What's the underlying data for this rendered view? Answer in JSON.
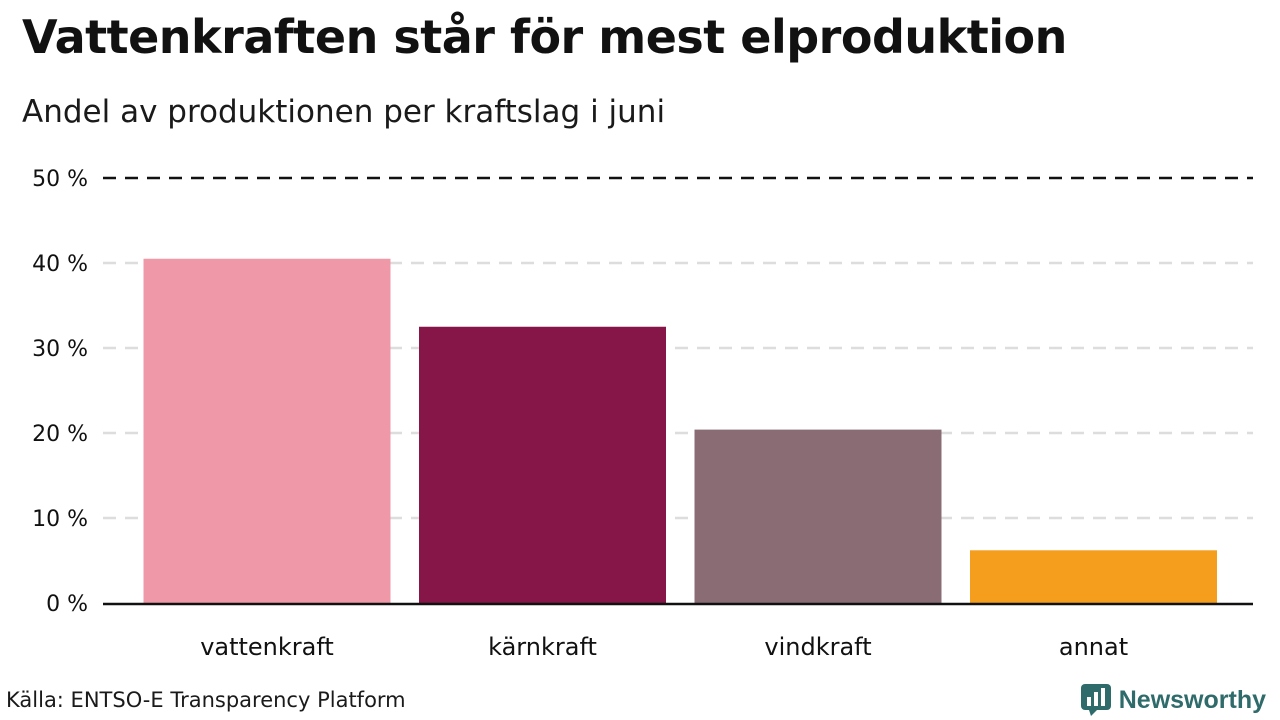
{
  "header": {
    "title": "Vattenkraften står för mest elproduktion",
    "subtitle": "Andel av produktionen per kraftslag i juni"
  },
  "footer": {
    "source": "Källa: ENTSO-E Transparency Platform",
    "brand_name": "Newsworthy",
    "brand_icon": "chart-logo-icon",
    "brand_color": "#2f6b6a"
  },
  "chart_data": {
    "type": "bar",
    "title": "Vattenkraften står för mest elproduktion",
    "subtitle": "Andel av produktionen per kraftslag i juni",
    "xlabel": "",
    "ylabel": "",
    "categories": [
      "vattenkraft",
      "kärnkraft",
      "vindkraft",
      "annat"
    ],
    "values": [
      40.5,
      32.5,
      20.4,
      6.2
    ],
    "colors": [
      "#ef98a8",
      "#861647",
      "#8a6c75",
      "#f59d1c"
    ],
    "ylim": [
      0,
      50
    ],
    "yticks": [
      0,
      10,
      20,
      30,
      40,
      50
    ],
    "ytick_labels": [
      "0 %",
      "10 %",
      "20 %",
      "30 %",
      "40 %",
      "50 %"
    ],
    "grid": true,
    "legend": "none"
  }
}
